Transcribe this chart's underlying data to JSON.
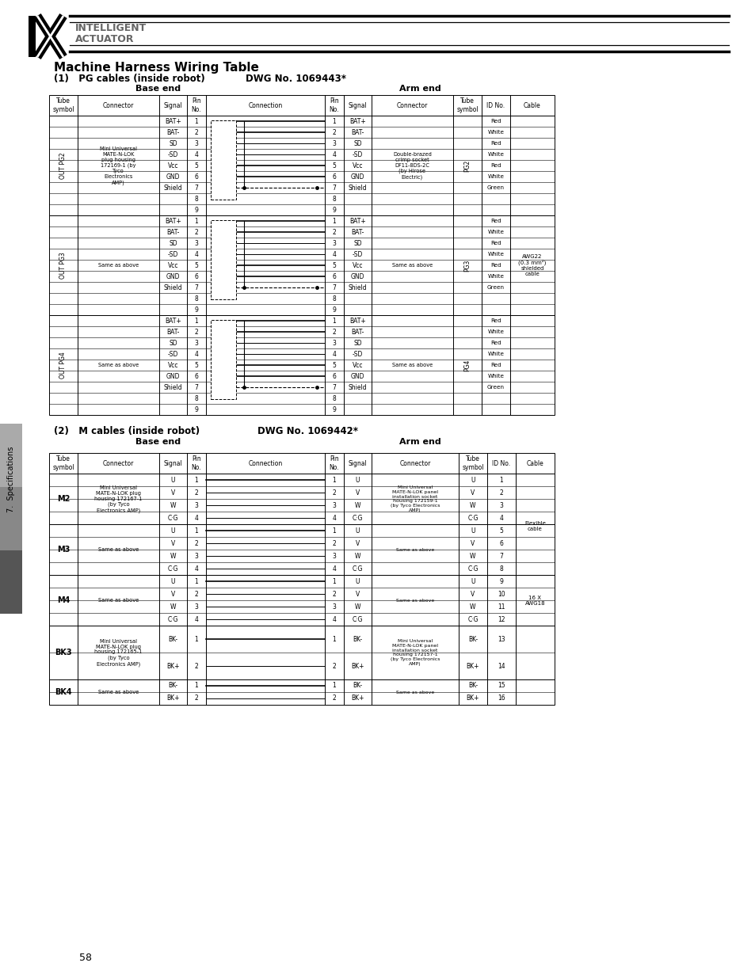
{
  "title": "Machine Harness Wiring Table",
  "subtitle1": "(1)   PG cables (inside robot)",
  "dwg1": "DWG No. 1069443*",
  "subtitle2": "(2)   M cables (inside robot)",
  "dwg2": "DWG No. 1069442*",
  "base_end": "Base end",
  "arm_end": "Arm end",
  "bg_color": "#ffffff",
  "page_number": "58",
  "side_label": "7.  Specifications",
  "col_headers": [
    "Tube\nsymbol",
    "Connector",
    "Signal",
    "Pin\nNo.",
    "Connection",
    "Pin\nNo.",
    "Signal",
    "Connector",
    "Tube\nsymbol",
    "ID No.",
    "Cable"
  ],
  "pg_signals": [
    "BAT+",
    "BAT-",
    "SD",
    "-SD",
    "Vcc",
    "GND",
    "Shield",
    "",
    ""
  ],
  "pg_id_colors": [
    "Red",
    "White",
    "Red",
    "White",
    "Red",
    "White",
    "Green",
    "",
    ""
  ],
  "pg_groups": [
    {
      "label": "OUT PG2",
      "tube": "PG2",
      "connector": "Mini Universal\nMATE-N-LOK\nplug housing\n172169-1 (by\nTyco\nElectronics\nAMP)",
      "arm_connector": "Double-brazed\ncrimp socket\nDF11-8DS-2C\n(by Hirose\nElectric)"
    },
    {
      "label": "OUT PG3",
      "tube": "PG3",
      "connector": "Same as above",
      "arm_connector": "Same as above"
    },
    {
      "label": "OUT PG4",
      "tube": "PG4",
      "connector": "Same as above",
      "arm_connector": "Same as above"
    }
  ],
  "m_groups": [
    {
      "label": "M2",
      "n_rows": 4,
      "connector": "Mini Universal\nMATE-N-LOK plug\nhousing 172167-1\n(by Tyco\nElectronics AMP)",
      "arm_connector": "Mini Universal\nMATE-N-LOK panel\ninstallation socket\nhousing 172159-1\n(by Tyco Electronics\nAMP)",
      "signals": [
        "U",
        "V",
        "W",
        "C·G"
      ],
      "id_nos": [
        "1",
        "2",
        "3",
        "4"
      ]
    },
    {
      "label": "M3",
      "n_rows": 4,
      "connector": "Same as above",
      "arm_connector": "Same as above",
      "signals": [
        "U",
        "V",
        "W",
        "C·G"
      ],
      "id_nos": [
        "5",
        "6",
        "7",
        "8"
      ]
    },
    {
      "label": "M4",
      "n_rows": 4,
      "connector": "Same as above",
      "arm_connector": "Same as above",
      "signals": [
        "U",
        "V",
        "W",
        "C·G"
      ],
      "id_nos": [
        "9",
        "10",
        "11",
        "12"
      ]
    },
    {
      "label": "BK3",
      "n_rows": 2,
      "connector": "Mini Universal\nMATE-N-LOK plug\nhousing 172165-1\n(by Tyco\nElectronics AMP)",
      "arm_connector": "Mini Universal\nMATE-N-LOK panel\ninstallation socket\nhousing 172157-1\n(by Tyco Electronics\nAMP)",
      "signals": [
        "BK-",
        "BK+"
      ],
      "id_nos": [
        "13",
        "14"
      ]
    },
    {
      "label": "BK4",
      "n_rows": 2,
      "connector": "Same as above",
      "arm_connector": "Same as above",
      "signals": [
        "BK-",
        "BK+"
      ],
      "id_nos": [
        "15",
        "16"
      ]
    }
  ]
}
